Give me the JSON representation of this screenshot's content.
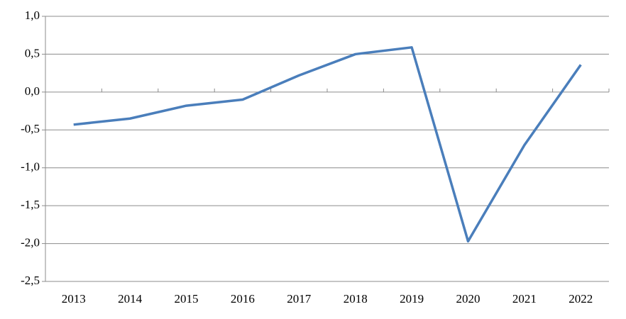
{
  "chart_data": {
    "type": "line",
    "categories": [
      "2013",
      "2014",
      "2015",
      "2016",
      "2017",
      "2018",
      "2019",
      "2020",
      "2021",
      "2022"
    ],
    "series": [
      {
        "name": null,
        "color": "#4a7ebb",
        "values": [
          -0.43,
          -0.35,
          -0.18,
          -0.1,
          0.22,
          0.5,
          0.59,
          -1.97,
          -0.7,
          0.36
        ]
      }
    ],
    "ylim": [
      -2.5,
      1.0
    ],
    "yticks": [
      {
        "value": -2.5,
        "label": "-2,5"
      },
      {
        "value": -2.0,
        "label": "-2,0"
      },
      {
        "value": -1.5,
        "label": "-1,5"
      },
      {
        "value": -1.0,
        "label": "-1,0"
      },
      {
        "value": -0.5,
        "label": "-0,5"
      },
      {
        "value": 0.0,
        "label": "0,0"
      },
      {
        "value": 0.5,
        "label": "0,5"
      },
      {
        "value": 1.0,
        "label": "1,0"
      }
    ],
    "grid": true
  }
}
